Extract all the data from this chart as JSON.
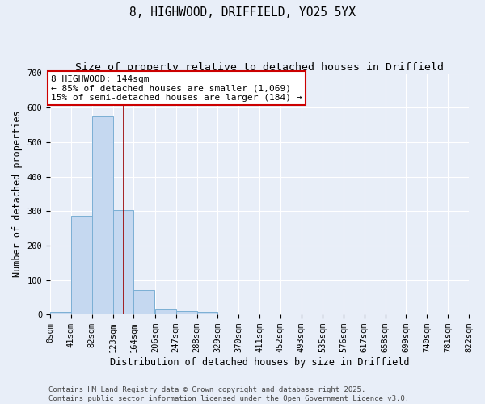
{
  "title_line1": "8, HIGHWOOD, DRIFFIELD, YO25 5YX",
  "title_line2": "Size of property relative to detached houses in Driffield",
  "xlabel": "Distribution of detached houses by size in Driffield",
  "ylabel": "Number of detached properties",
  "bin_edges": [
    0,
    41,
    82,
    123,
    164,
    206,
    247,
    288,
    329,
    370,
    411,
    452,
    493,
    535,
    576,
    617,
    658,
    699,
    740,
    781,
    822
  ],
  "bin_labels": [
    "0sqm",
    "41sqm",
    "82sqm",
    "123sqm",
    "164sqm",
    "206sqm",
    "247sqm",
    "288sqm",
    "329sqm",
    "370sqm",
    "411sqm",
    "452sqm",
    "493sqm",
    "535sqm",
    "576sqm",
    "617sqm",
    "658sqm",
    "699sqm",
    "740sqm",
    "781sqm",
    "822sqm"
  ],
  "bar_heights": [
    7,
    287,
    575,
    302,
    70,
    15,
    10,
    8,
    0,
    0,
    0,
    0,
    0,
    0,
    0,
    0,
    0,
    0,
    0,
    0
  ],
  "bar_color": "#c5d8f0",
  "bar_edge_color": "#7bafd4",
  "property_line_x": 144,
  "property_line_color": "#990000",
  "annotation_text": "8 HIGHWOOD: 144sqm\n← 85% of detached houses are smaller (1,069)\n15% of semi-detached houses are larger (184) →",
  "annotation_box_color": "#ffffff",
  "annotation_box_edge_color": "#cc0000",
  "ylim": [
    0,
    700
  ],
  "xlim": [
    0,
    822
  ],
  "background_color": "#e8eef8",
  "grid_color": "#ffffff",
  "footer_line1": "Contains HM Land Registry data © Crown copyright and database right 2025.",
  "footer_line2": "Contains public sector information licensed under the Open Government Licence v3.0.",
  "title_fontsize": 10.5,
  "subtitle_fontsize": 9.5,
  "axis_label_fontsize": 8.5,
  "tick_fontsize": 7.5,
  "annotation_fontsize": 8,
  "footer_fontsize": 6.5
}
